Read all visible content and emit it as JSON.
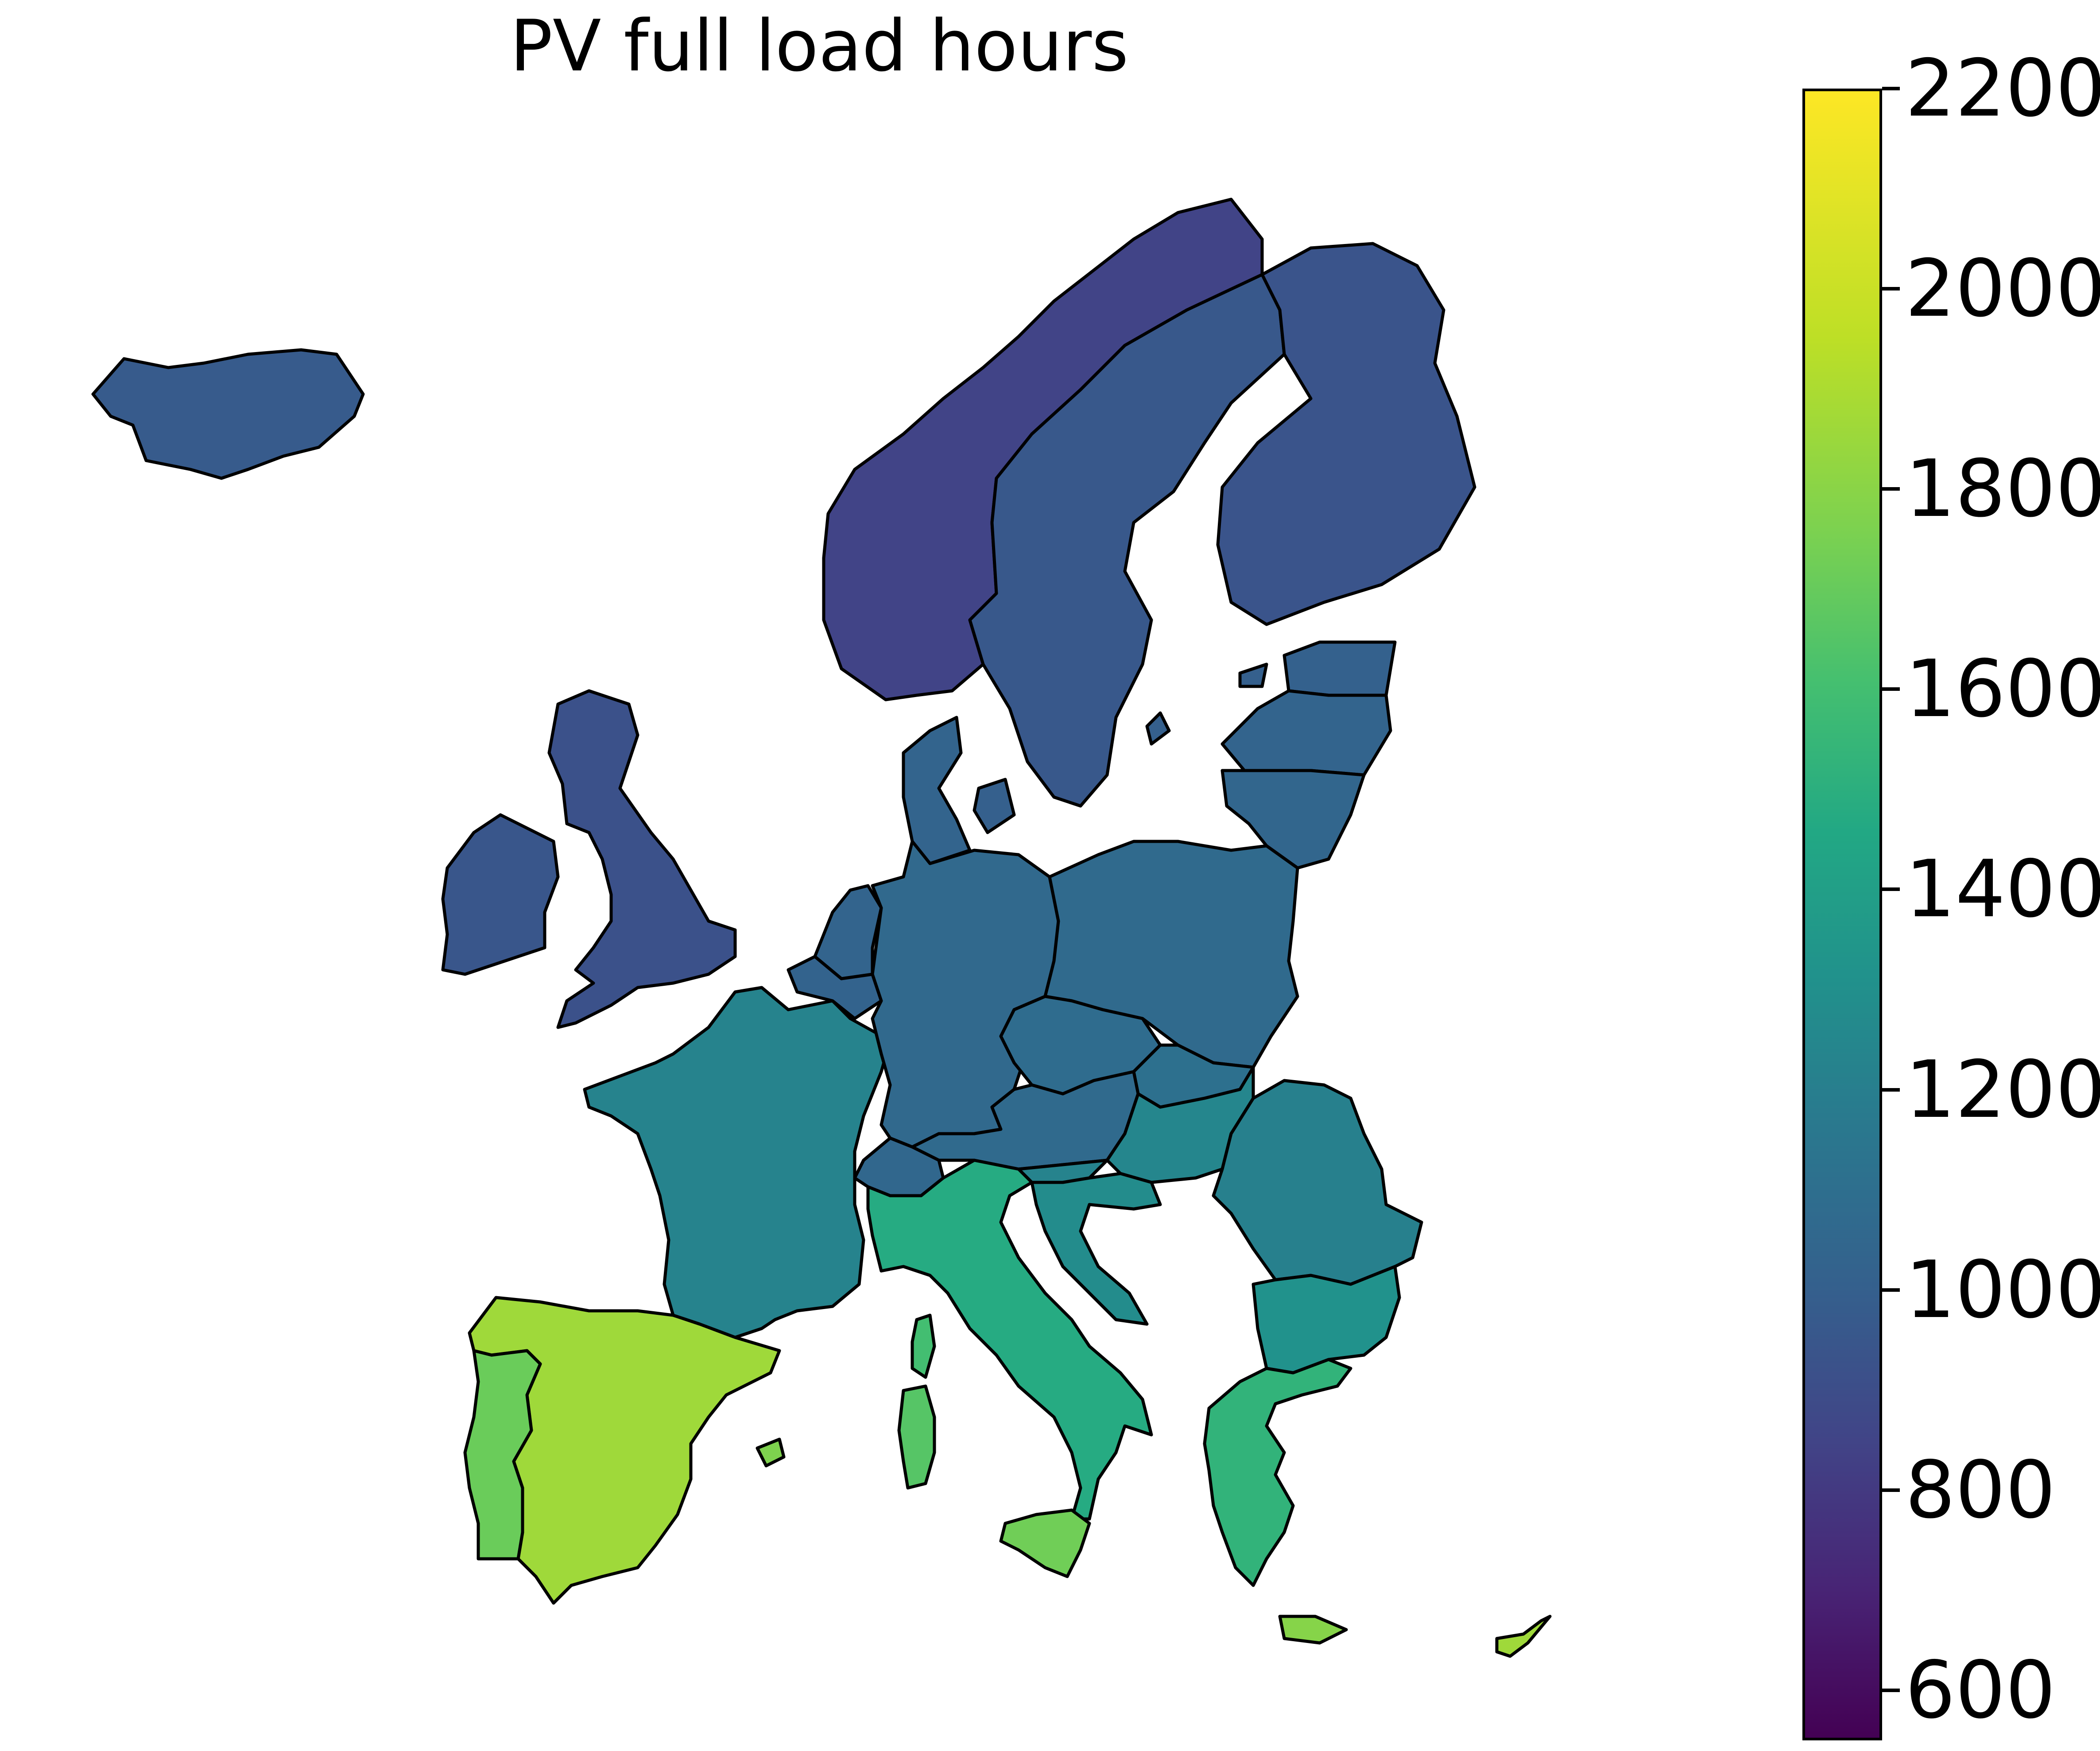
{
  "title": "PV full load hours",
  "colorbar": {
    "min": 550,
    "max": 2200,
    "ticks": [
      600,
      800,
      1000,
      1200,
      1400,
      1600,
      1800,
      2000,
      2200
    ],
    "colormap": "viridis"
  },
  "regions": [
    {
      "name": "Iceland",
      "value": 1020
    },
    {
      "name": "Norway",
      "value": 880
    },
    {
      "name": "Sweden",
      "value": 1000
    },
    {
      "name": "Finland",
      "value": 980
    },
    {
      "name": "Estonia",
      "value": 1060
    },
    {
      "name": "Latvia",
      "value": 1080
    },
    {
      "name": "Lithuania",
      "value": 1090
    },
    {
      "name": "Denmark",
      "value": 1080
    },
    {
      "name": "Ireland",
      "value": 990
    },
    {
      "name": "United Kingdom",
      "value": 960
    },
    {
      "name": "Netherlands",
      "value": 1080
    },
    {
      "name": "Belgium",
      "value": 1070
    },
    {
      "name": "Germany",
      "value": 1110
    },
    {
      "name": "Poland",
      "value": 1120
    },
    {
      "name": "Czechia",
      "value": 1130
    },
    {
      "name": "Slovakia",
      "value": 1160
    },
    {
      "name": "Austria",
      "value": 1120
    },
    {
      "name": "Switzerland",
      "value": 1100
    },
    {
      "name": "Hungary",
      "value": 1300
    },
    {
      "name": "Slovenia",
      "value": 1280
    },
    {
      "name": "Croatia",
      "value": 1340
    },
    {
      "name": "Romania",
      "value": 1260
    },
    {
      "name": "Bulgaria",
      "value": 1380
    },
    {
      "name": "Greece",
      "value": 1620
    },
    {
      "name": "France",
      "value": 1280
    },
    {
      "name": "Italy",
      "value": 1560
    },
    {
      "name": "Spain",
      "value": 1960
    },
    {
      "name": "Portugal",
      "value": 1820
    },
    {
      "name": "Sardinia",
      "value": 1760
    },
    {
      "name": "Corsica",
      "value": 1700
    },
    {
      "name": "Sicily",
      "value": 1840
    },
    {
      "name": "Crete",
      "value": 1900
    },
    {
      "name": "Cyprus",
      "value": 1960
    },
    {
      "name": "Balearic Islands",
      "value": 1880
    }
  ]
}
